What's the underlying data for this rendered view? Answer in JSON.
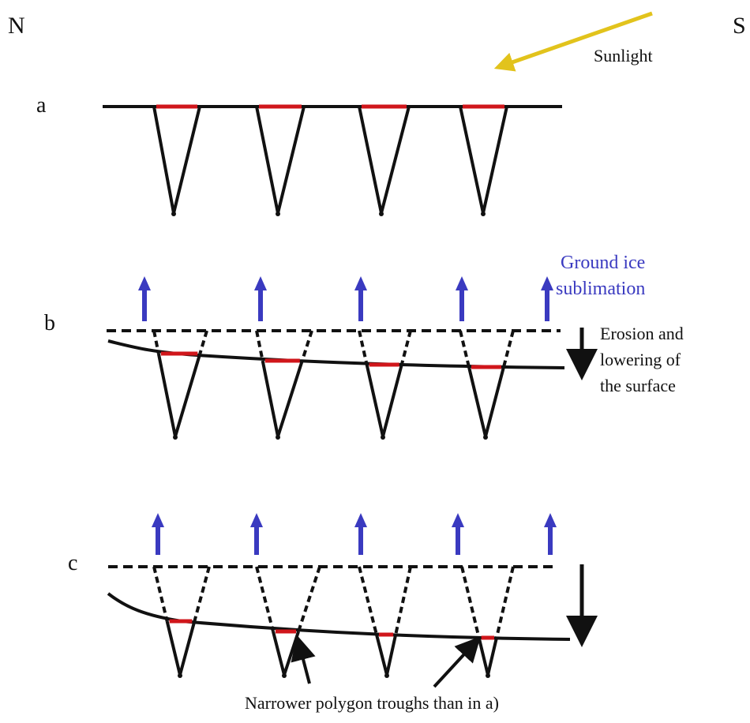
{
  "compass": {
    "north": "N",
    "south": "S"
  },
  "sunlight": "Sunlight",
  "panels": {
    "a": "a",
    "b": "b",
    "c": "c"
  },
  "sublimation": [
    "Ground ice",
    "sublimation"
  ],
  "erosion": [
    "Erosion and",
    "lowering of",
    "the surface"
  ],
  "note": "Narrower polygon troughs than in a)"
}
